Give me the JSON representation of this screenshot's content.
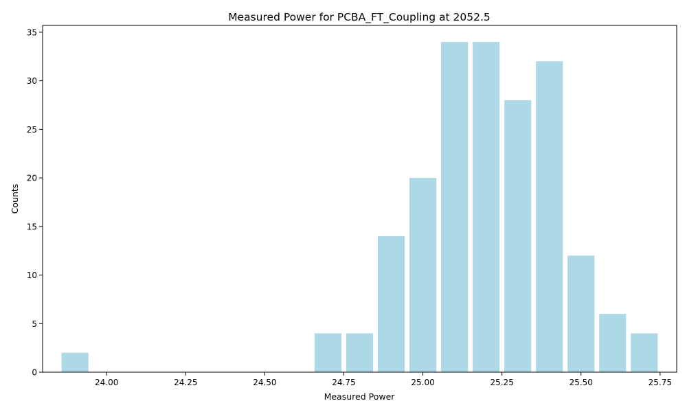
{
  "chart_data": {
    "type": "bar",
    "title": "Measured Power for PCBA_FT_Coupling at 2052.5",
    "xlabel": "Measured Power",
    "ylabel": "Counts",
    "x": [
      23.9,
      24.7,
      24.8,
      24.9,
      25.0,
      25.1,
      25.2,
      25.3,
      25.4,
      25.5,
      25.6,
      25.7
    ],
    "values": [
      2,
      4,
      4,
      14,
      20,
      34,
      34,
      28,
      32,
      12,
      6,
      4
    ],
    "bar_width": 0.085,
    "bar_color": "#add8e6",
    "xlim": [
      23.7975,
      25.8025
    ],
    "ylim": [
      0,
      35.7
    ],
    "xticks": [
      24.0,
      24.25,
      24.5,
      24.75,
      25.0,
      25.25,
      25.5,
      25.75
    ],
    "xtick_labels": [
      "24.00",
      "24.25",
      "24.50",
      "24.75",
      "25.00",
      "25.25",
      "25.50",
      "25.75"
    ],
    "yticks": [
      0,
      5,
      10,
      15,
      20,
      25,
      30,
      35
    ],
    "ytick_labels": [
      "0",
      "5",
      "10",
      "15",
      "20",
      "25",
      "30",
      "35"
    ],
    "grid": false,
    "legend": "none"
  }
}
